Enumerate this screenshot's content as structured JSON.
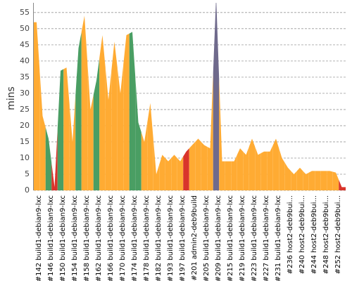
{
  "chart_data": {
    "type": "area",
    "y_label": "mins",
    "categories": [
      "#142 build1-debian9-lxc",
      null,
      "#146 build1-debian9-lxc",
      null,
      "#150 build1-debian9-lxc",
      null,
      "#154 build1-debian9-lxc",
      null,
      "#158 build1-debian9-lxc",
      null,
      "#162 build1-debian9-lxc",
      null,
      "#166 build1-debian9-lxc",
      null,
      "#170 build1-debian9-lxc",
      null,
      "#174 build1-debian9-lxc",
      null,
      "#178 build1-debian9-lxc",
      null,
      "#182 build1-debian9-lxc",
      null,
      "#193 build1-debian9-lxc",
      null,
      "#197 build1-debian9-lxc",
      null,
      "#201 admin2-deb9build",
      null,
      "#205 build1-debian9-lxc",
      null,
      "#209 build1-debian9-lxc",
      null,
      "#215 build1-debian9-lxc",
      null,
      "#219 build1-debian9-lxc",
      null,
      "#223 build1-debian9-lxc",
      null,
      "#227 build1-debian9-lxc",
      null,
      "#231 build1-debian9-lxc",
      null,
      "#236 host2-deb9bui...",
      null,
      "#240 host2-deb9bui...",
      null,
      "#244 host2-deb9bui...",
      null,
      "#248 host2-deb9bui...",
      null,
      "#252 host2-deb9bui...",
      null
    ],
    "values": [
      52,
      23,
      16,
      1,
      37,
      38,
      15,
      44,
      54,
      25,
      34,
      48,
      28,
      46,
      30,
      48,
      49,
      21,
      15,
      27,
      5,
      11,
      9,
      11,
      9,
      12,
      14,
      16,
      14,
      13,
      60,
      9,
      9,
      9,
      13,
      11,
      16,
      11,
      12,
      12,
      16,
      10,
      7,
      5,
      7,
      5,
      6,
      6,
      6,
      6,
      5.5,
      1
    ],
    "colors": [
      "#ffab33",
      "#ffab33",
      "#4a9e63",
      "#d9342b",
      "#4a9e63",
      "#ffab33",
      "#ffab33",
      "#4a9e63",
      "#ffab33",
      "#ffab33",
      "#4a9e63",
      "#ffab33",
      "#ffab33",
      "#ffab33",
      "#ffab33",
      "#ffab33",
      "#4a9e63",
      "#4a9e63",
      "#ffab33",
      "#ffab33",
      "#ffab33",
      "#ffab33",
      "#ffab33",
      "#ffab33",
      "#ffab33",
      "#d9342b",
      "#ffab33",
      "#ffab33",
      "#ffab33",
      "#ffab33",
      "#6f6a8c",
      "#ffab33",
      "#ffab33",
      "#ffab33",
      "#ffab33",
      "#ffab33",
      "#ffab33",
      "#ffab33",
      "#ffab33",
      "#ffab33",
      "#ffab33",
      "#ffab33",
      "#ffab33",
      "#ffab33",
      "#ffab33",
      "#ffab33",
      "#ffab33",
      "#ffab33",
      "#ffab33",
      "#ffab33",
      "#ffab33",
      "#d9342b"
    ],
    "ylim": [
      0,
      58
    ],
    "yticks": [
      0,
      5,
      10,
      15,
      20,
      25,
      30,
      35,
      40,
      45,
      50,
      55
    ],
    "grid": true
  }
}
